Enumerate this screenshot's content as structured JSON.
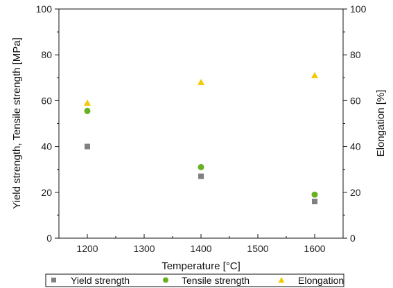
{
  "chart_data": {
    "type": "scatter",
    "xlabel": "Temperature [°C]",
    "ylabel_left": "Yield strength, Tensile strength [MPa]",
    "ylabel_right": "Elongation [%]",
    "xlim": [
      1150,
      1650
    ],
    "ylim_left": [
      0,
      100
    ],
    "ylim_right": [
      0,
      100
    ],
    "x_ticks": [
      1200,
      1300,
      1400,
      1500,
      1600
    ],
    "y_ticks_left": [
      0,
      20,
      40,
      60,
      80,
      100
    ],
    "y_ticks_right": [
      0,
      20,
      40,
      60,
      80,
      100
    ],
    "grid": false,
    "legend_position": "bottom",
    "series": [
      {
        "name": "Yield strength",
        "axis": "left",
        "marker": "square",
        "color": "#808080",
        "x": [
          1200,
          1400,
          1600
        ],
        "y": [
          40,
          27,
          16
        ]
      },
      {
        "name": "Tensile strength",
        "axis": "left",
        "marker": "circle",
        "color": "#6ab023",
        "x": [
          1200,
          1400,
          1600
        ],
        "y": [
          55.5,
          31,
          19
        ]
      },
      {
        "name": "Elongation",
        "axis": "right",
        "marker": "triangle",
        "color": "#f5c800",
        "x": [
          1200,
          1400,
          1600
        ],
        "y": [
          59,
          68,
          71
        ]
      }
    ]
  }
}
